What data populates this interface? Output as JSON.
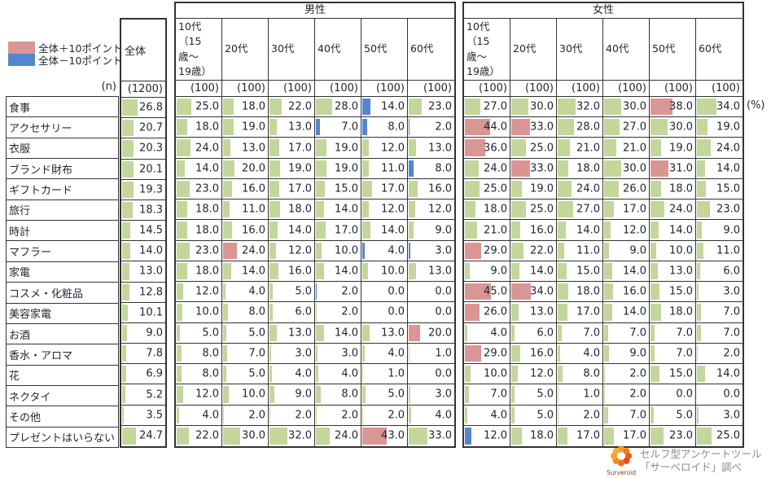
{
  "legend": {
    "above_label": "全体＋10ポイント",
    "below_label": "全体－10ポイント"
  },
  "colors": {
    "normal": "#c3d69b",
    "above": "#d99694",
    "below": "#5585cd"
  },
  "columns": {
    "total_label": "全体",
    "male_label": "男性",
    "female_label": "女性"
  },
  "n_row": {
    "label": "(n)",
    "total": "(1200)",
    "per_column": "(100)"
  },
  "percent_label": "(%)",
  "footer": {
    "brand": "Surveroid",
    "credit_line1": "セルフ型アンケートツール",
    "credit_line2": "「サーベロイド」調べ"
  },
  "chart_data": {
    "type": "table",
    "unit": "%",
    "highlight_rule": {
      "above_threshold": 10,
      "below_threshold": -10,
      "baseline": "全体"
    },
    "age_labels": [
      "10代\n（15歳〜\n19歳）",
      "20代",
      "30代",
      "40代",
      "50代",
      "60代"
    ],
    "rows": [
      {
        "label": "食事",
        "total": 26.8,
        "male": [
          25.0,
          18.0,
          22.0,
          28.0,
          14.0,
          23.0
        ],
        "female": [
          27.0,
          30.0,
          32.0,
          30.0,
          38.0,
          34.0
        ]
      },
      {
        "label": "アクセサリー",
        "total": 20.7,
        "male": [
          18.0,
          19.0,
          13.0,
          7.0,
          8.0,
          2.0
        ],
        "female": [
          44.0,
          33.0,
          28.0,
          27.0,
          30.0,
          19.0
        ]
      },
      {
        "label": "衣服",
        "total": 20.3,
        "male": [
          24.0,
          13.0,
          17.0,
          19.0,
          12.0,
          13.0
        ],
        "female": [
          36.0,
          25.0,
          21.0,
          21.0,
          19.0,
          24.0
        ]
      },
      {
        "label": "ブランド財布",
        "total": 20.1,
        "male": [
          14.0,
          20.0,
          19.0,
          19.0,
          11.0,
          8.0
        ],
        "female": [
          24.0,
          33.0,
          18.0,
          30.0,
          31.0,
          14.0
        ]
      },
      {
        "label": "ギフトカード",
        "total": 19.3,
        "male": [
          23.0,
          16.0,
          17.0,
          15.0,
          17.0,
          16.0
        ],
        "female": [
          25.0,
          19.0,
          24.0,
          26.0,
          18.0,
          15.0
        ]
      },
      {
        "label": "旅行",
        "total": 18.3,
        "male": [
          18.0,
          11.0,
          18.0,
          14.0,
          12.0,
          12.0
        ],
        "female": [
          18.0,
          25.0,
          27.0,
          17.0,
          24.0,
          23.0
        ]
      },
      {
        "label": "時計",
        "total": 14.5,
        "male": [
          18.0,
          16.0,
          14.0,
          17.0,
          14.0,
          9.0
        ],
        "female": [
          21.0,
          16.0,
          14.0,
          12.0,
          14.0,
          9.0
        ]
      },
      {
        "label": "マフラー",
        "total": 14.0,
        "male": [
          23.0,
          24.0,
          12.0,
          10.0,
          4.0,
          3.0
        ],
        "female": [
          29.0,
          22.0,
          11.0,
          9.0,
          10.0,
          11.0
        ]
      },
      {
        "label": "家電",
        "total": 13.0,
        "male": [
          18.0,
          14.0,
          16.0,
          14.0,
          10.0,
          13.0
        ],
        "female": [
          9.0,
          14.0,
          15.0,
          14.0,
          13.0,
          6.0
        ]
      },
      {
        "label": "コスメ・化粧品",
        "total": 12.8,
        "male": [
          12.0,
          4.0,
          5.0,
          2.0,
          0.0,
          0.0
        ],
        "female": [
          45.0,
          34.0,
          18.0,
          16.0,
          15.0,
          3.0
        ]
      },
      {
        "label": "美容家電",
        "total": 10.1,
        "male": [
          10.0,
          8.0,
          6.0,
          2.0,
          0.0,
          0.0
        ],
        "female": [
          26.0,
          13.0,
          17.0,
          14.0,
          18.0,
          7.0
        ]
      },
      {
        "label": "お酒",
        "total": 9.0,
        "male": [
          5.0,
          5.0,
          13.0,
          14.0,
          13.0,
          20.0
        ],
        "female": [
          4.0,
          6.0,
          7.0,
          7.0,
          7.0,
          7.0
        ]
      },
      {
        "label": "香水・アロマ",
        "total": 7.8,
        "male": [
          8.0,
          7.0,
          3.0,
          3.0,
          4.0,
          1.0
        ],
        "female": [
          29.0,
          16.0,
          4.0,
          9.0,
          7.0,
          2.0
        ]
      },
      {
        "label": "花",
        "total": 6.9,
        "male": [
          8.0,
          5.0,
          4.0,
          4.0,
          1.0,
          0.0
        ],
        "female": [
          10.0,
          12.0,
          8.0,
          2.0,
          15.0,
          14.0
        ]
      },
      {
        "label": "ネクタイ",
        "total": 5.2,
        "male": [
          12.0,
          10.0,
          9.0,
          8.0,
          5.0,
          3.0
        ],
        "female": [
          7.0,
          5.0,
          1.0,
          2.0,
          0.0,
          0.0
        ]
      },
      {
        "label": "その他",
        "total": 3.5,
        "male": [
          4.0,
          2.0,
          2.0,
          2.0,
          2.0,
          4.0
        ],
        "female": [
          4.0,
          5.0,
          2.0,
          7.0,
          5.0,
          3.0
        ]
      },
      {
        "label": "プレゼントはいらない",
        "total": 24.7,
        "male": [
          22.0,
          30.0,
          32.0,
          24.0,
          43.0,
          33.0
        ],
        "female": [
          12.0,
          18.0,
          17.0,
          17.0,
          23.0,
          25.0
        ]
      }
    ]
  }
}
